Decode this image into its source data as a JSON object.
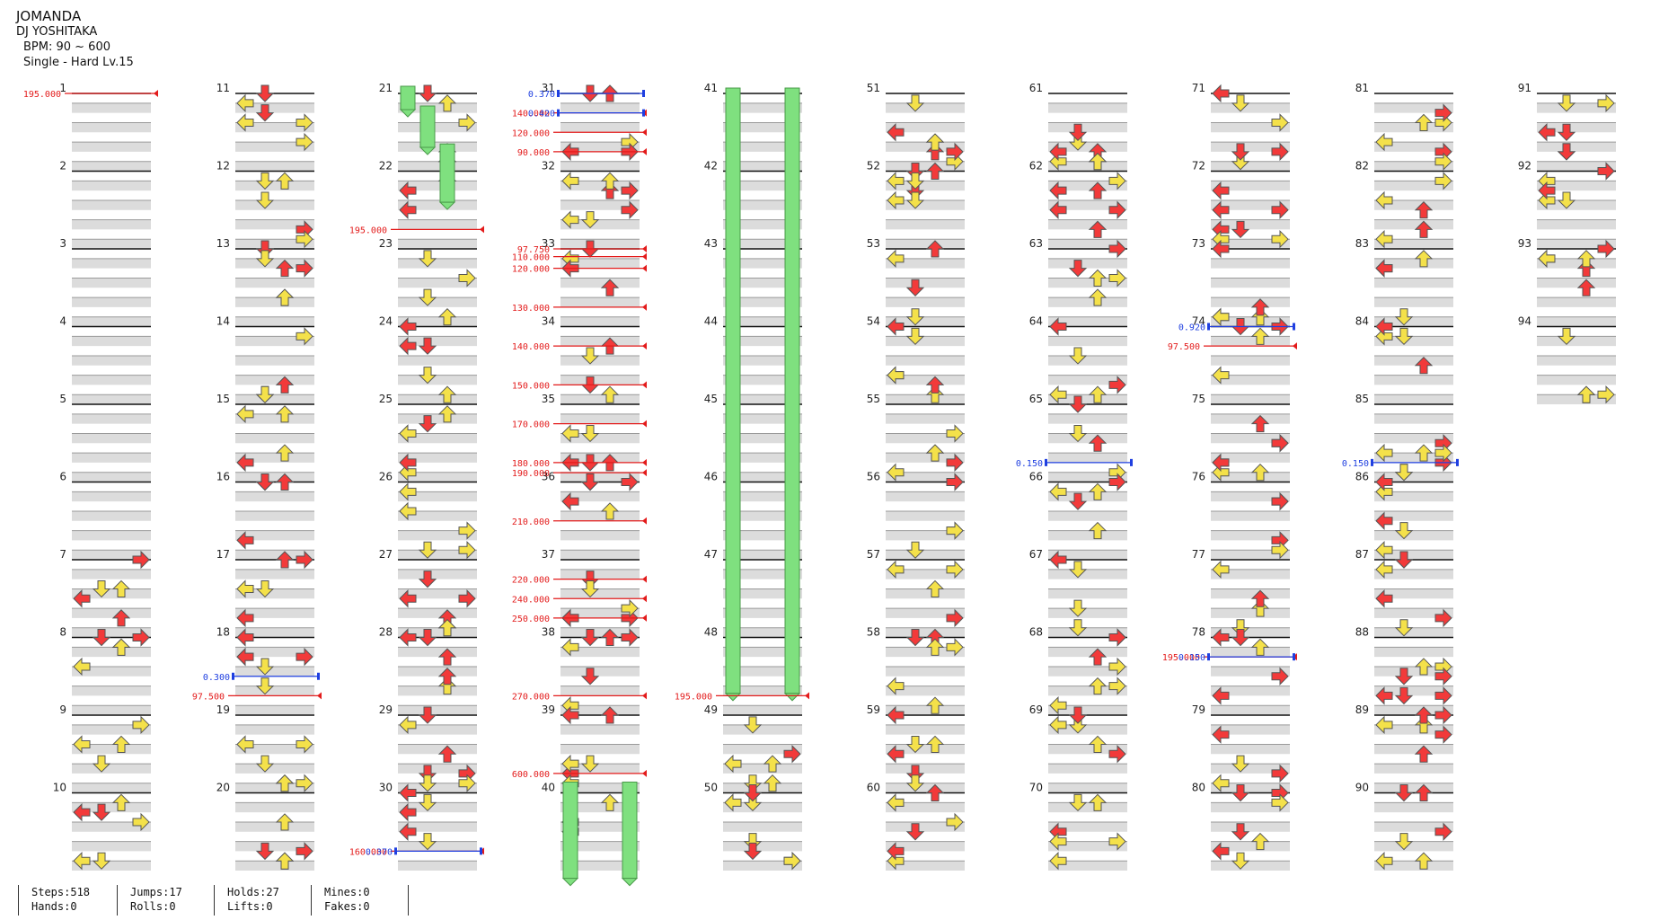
{
  "song": {
    "title": "JOMANDA",
    "artist": "DJ YOSHITAKA",
    "bpm": "BPM: 90 ~ 600",
    "difficulty": "Single - Hard  Lv.15"
  },
  "colors": {
    "red": "#f23a3a",
    "blue": "#2f5bea",
    "yellow": "#f4e14a",
    "orange": "#f59a2a",
    "hold": "#7fe07f",
    "bpm_line": "#e31b1b",
    "stop_line": "#1f3fe0",
    "lane_shade": "#dcdcdc"
  },
  "measures": [
    1,
    2,
    3,
    4,
    5,
    6,
    7,
    8,
    9,
    10,
    11,
    12,
    13,
    14,
    15,
    16,
    17,
    18,
    19,
    20,
    21,
    22,
    23,
    24,
    25,
    26,
    27,
    28,
    29,
    30,
    31,
    32,
    33,
    34,
    35,
    36,
    37,
    38,
    39,
    40,
    41,
    42,
    43,
    44,
    45,
    46,
    47,
    48,
    49,
    50,
    51,
    52,
    53,
    54,
    55,
    56,
    57,
    58,
    59,
    60,
    61,
    62,
    63,
    64,
    65,
    66,
    67,
    68,
    69,
    70,
    71,
    72,
    73,
    74,
    75,
    76,
    77,
    78,
    79,
    80,
    81,
    82,
    83,
    84,
    85,
    86,
    87,
    88,
    89,
    90,
    91,
    92,
    93,
    94
  ],
  "bpm_changes": [
    {
      "label": "195.000",
      "measure": 1.0
    },
    {
      "label": "97.500",
      "measure": 18.75
    },
    {
      "label": "195.000",
      "measure": 22.75
    },
    {
      "label": "160.000",
      "measure": 30.75
    },
    {
      "label": "140.000",
      "measure": 31.25
    },
    {
      "label": "120.000",
      "measure": 31.5
    },
    {
      "label": "90.000",
      "measure": 31.75
    },
    {
      "label": "195.000",
      "measure": 48.75
    },
    {
      "label": "97.750",
      "measure": 33.0
    },
    {
      "label": "110.000",
      "measure": 33.1
    },
    {
      "label": "120.000",
      "measure": 33.25
    },
    {
      "label": "130.000",
      "measure": 33.75
    },
    {
      "label": "140.000",
      "measure": 34.25
    },
    {
      "label": "150.000",
      "measure": 34.75
    },
    {
      "label": "170.000",
      "measure": 35.25
    },
    {
      "label": "180.000",
      "measure": 35.75
    },
    {
      "label": "190.000",
      "measure": 35.88
    },
    {
      "label": "210.000",
      "measure": 36.5
    },
    {
      "label": "220.000",
      "measure": 37.25
    },
    {
      "label": "240.000",
      "measure": 37.5
    },
    {
      "label": "250.000",
      "measure": 37.75
    },
    {
      "label": "270.000",
      "measure": 38.75
    },
    {
      "label": "600.000",
      "measure": 39.75
    },
    {
      "label": "97.500",
      "measure": 74.25
    },
    {
      "label": "195.000",
      "measure": 78.25
    }
  ],
  "stops": [
    {
      "label": "0.300",
      "measure": 18.5
    },
    {
      "label": "0.370",
      "measure": 30.75
    },
    {
      "label": "0.370",
      "measure": 31.0
    },
    {
      "label": "0.420",
      "measure": 31.25
    },
    {
      "label": "0.150",
      "measure": 65.75
    },
    {
      "label": "0.920",
      "measure": 74.0
    },
    {
      "label": "0.150",
      "measure": 78.25
    },
    {
      "label": "0.150",
      "measure": 85.75
    }
  ],
  "stats": {
    "steps": "Steps:518",
    "hands": "Hands:0",
    "jumps": "Jumps:17",
    "rolls": "Rolls:0",
    "holds": "Holds:27",
    "lifts": "Lifts:0",
    "mines": "Mines:0",
    "fakes": "Fakes:0"
  }
}
